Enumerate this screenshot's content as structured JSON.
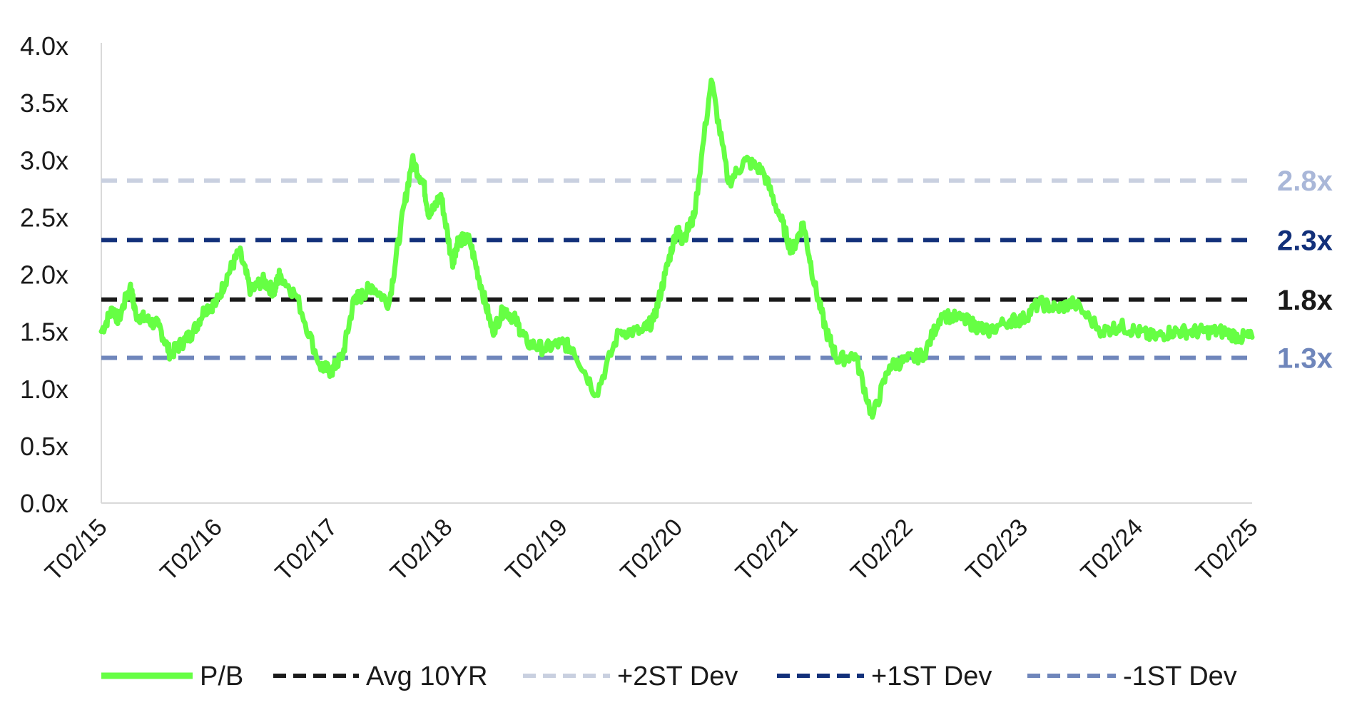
{
  "chart_data": {
    "type": "line",
    "title": "",
    "xlabel": "",
    "ylabel": "",
    "ylim": [
      0,
      4
    ],
    "y_ticks": [
      "0.0x",
      "0.5x",
      "1.0x",
      "1.5x",
      "2.0x",
      "2.5x",
      "3.0x",
      "3.5x",
      "4.0x"
    ],
    "x_ticks": [
      "T02/15",
      "T02/16",
      "T02/17",
      "T02/18",
      "T02/19",
      "T02/20",
      "T02/21",
      "T02/22",
      "T02/23",
      "T02/24",
      "T02/25"
    ],
    "grid": false,
    "legend_position": "bottom",
    "series": [
      {
        "name": "P/B",
        "color": "#66ff44",
        "style": "solid",
        "x": [
          2015.0,
          2015.1,
          2015.15,
          2015.25,
          2015.3,
          2015.4,
          2015.5,
          2015.6,
          2015.7,
          2015.8,
          2015.9,
          2016.0,
          2016.1,
          2016.2,
          2016.3,
          2016.4,
          2016.5,
          2016.55,
          2016.7,
          2016.9,
          2017.0,
          2017.1,
          2017.2,
          2017.25,
          2017.35,
          2017.5,
          2017.6,
          2017.7,
          2017.8,
          2017.85,
          2017.95,
          2018.05,
          2018.1,
          2018.2,
          2018.3,
          2018.4,
          2018.5,
          2018.6,
          2018.7,
          2018.85,
          2019.0,
          2019.1,
          2019.3,
          2019.5,
          2019.7,
          2019.8,
          2019.9,
          2020.0,
          2020.05,
          2020.15,
          2020.3,
          2020.45,
          2020.6,
          2020.75,
          2020.9,
          2021.0,
          2021.1,
          2021.2,
          2021.3,
          2021.4,
          2021.55,
          2021.7,
          2021.85,
          2022.0,
          2022.15,
          2022.3,
          2022.5,
          2022.6,
          2022.7,
          2022.9,
          2023.0,
          2023.15,
          2023.3,
          2023.45,
          2023.7,
          2023.85,
          2024.0,
          2024.15,
          2024.3,
          2024.45,
          2024.6,
          2024.75,
          2024.9,
          2025.0
        ],
        "y": [
          1.5,
          1.7,
          1.6,
          1.9,
          1.65,
          1.6,
          1.55,
          1.3,
          1.4,
          1.5,
          1.7,
          1.75,
          2.0,
          2.2,
          1.85,
          1.95,
          1.85,
          2.0,
          1.8,
          1.2,
          1.15,
          1.3,
          1.8,
          1.8,
          1.9,
          1.75,
          2.4,
          3.0,
          2.8,
          2.5,
          2.7,
          2.1,
          2.3,
          2.3,
          1.9,
          1.5,
          1.7,
          1.6,
          1.4,
          1.35,
          1.4,
          1.35,
          0.95,
          1.5,
          1.5,
          1.6,
          2.0,
          2.4,
          2.3,
          2.5,
          3.7,
          2.8,
          3.0,
          2.9,
          2.5,
          2.2,
          2.45,
          1.9,
          1.5,
          1.25,
          1.3,
          0.75,
          1.2,
          1.25,
          1.3,
          1.65,
          1.6,
          1.55,
          1.5,
          1.6,
          1.6,
          1.75,
          1.7,
          1.75,
          1.5,
          1.55,
          1.5,
          1.45,
          1.5,
          1.5,
          1.5,
          1.5,
          1.45,
          1.45
        ]
      },
      {
        "name": "Avg 10YR",
        "color": "#1a1a1a",
        "style": "dashed",
        "value": 1.78
      },
      {
        "name": "+2ST Dev",
        "color": "#c9d0e0",
        "style": "dashed",
        "value": 2.82
      },
      {
        "name": "+1ST Dev",
        "color": "#12307a",
        "style": "dashed",
        "value": 2.3
      },
      {
        "name": "-1ST Dev",
        "color": "#6f86bb",
        "style": "dashed",
        "value": 1.27
      }
    ],
    "end_labels": [
      {
        "text": "2.8x",
        "color": "#a9b7d8",
        "value": 2.82
      },
      {
        "text": "2.3x",
        "color": "#12307a",
        "value": 2.3
      },
      {
        "text": "1.8x",
        "color": "#1a1a1a",
        "value": 1.78
      },
      {
        "text": "1.3x",
        "color": "#6f86bb",
        "value": 1.27
      }
    ]
  }
}
